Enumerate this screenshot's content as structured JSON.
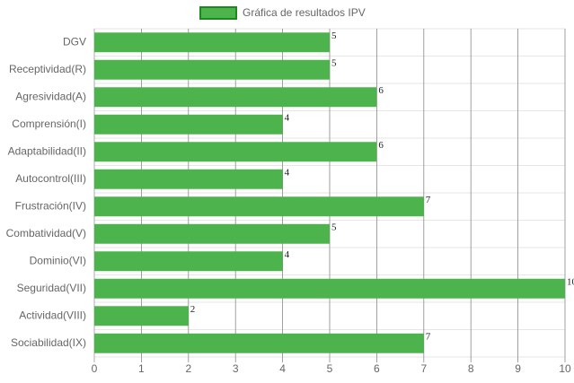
{
  "chart_data": {
    "type": "bar",
    "orientation": "horizontal",
    "categories": [
      "DGV",
      "Receptividad(R)",
      "Agresividad(A)",
      "Comprensión(I)",
      "Adaptabilidad(II)",
      "Autocontrol(III)",
      "Frustración(IV)",
      "Combatividad(V)",
      "Dominio(VI)",
      "Seguridad(VII)",
      "Actividad(VIII)",
      "Sociabilidad(IX)"
    ],
    "series": [
      {
        "name": "Gráfica de resultados IPV",
        "color": "#4db34d",
        "border_color": "#1a8a1a",
        "values": [
          5,
          5,
          6,
          4,
          6,
          4,
          7,
          5,
          4,
          10,
          2,
          7
        ]
      }
    ],
    "xlim": [
      0,
      10
    ],
    "xticks": [
      0,
      1,
      2,
      3,
      4,
      5,
      6,
      7,
      8,
      9,
      10
    ],
    "grid": true,
    "legend": "top",
    "data_labels": true
  }
}
